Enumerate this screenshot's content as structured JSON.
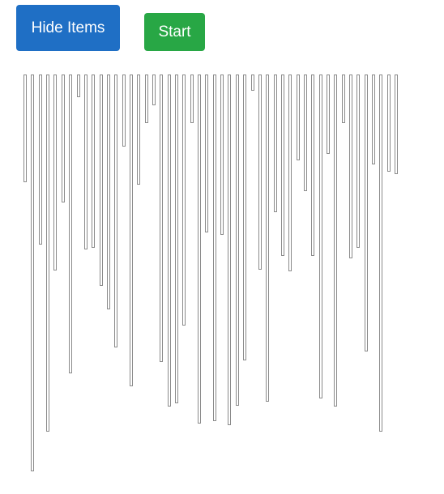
{
  "toolbar": {
    "hide_label": "Hide Items",
    "start_label": "Start",
    "hide_color": "#1f6fc5",
    "start_color": "#28a745"
  },
  "bars": {
    "color": "#8a8a8a",
    "values": [
      133,
      490,
      210,
      441,
      242,
      158,
      369,
      28,
      216,
      214,
      261,
      290,
      337,
      89,
      385,
      136,
      60,
      38,
      355,
      410,
      406,
      310,
      60,
      431,
      195,
      428,
      198,
      433,
      409,
      353,
      20,
      241,
      404,
      170,
      224,
      243,
      106,
      144,
      224,
      400,
      98,
      410,
      60,
      227,
      214,
      342,
      111,
      441,
      120,
      123
    ]
  }
}
